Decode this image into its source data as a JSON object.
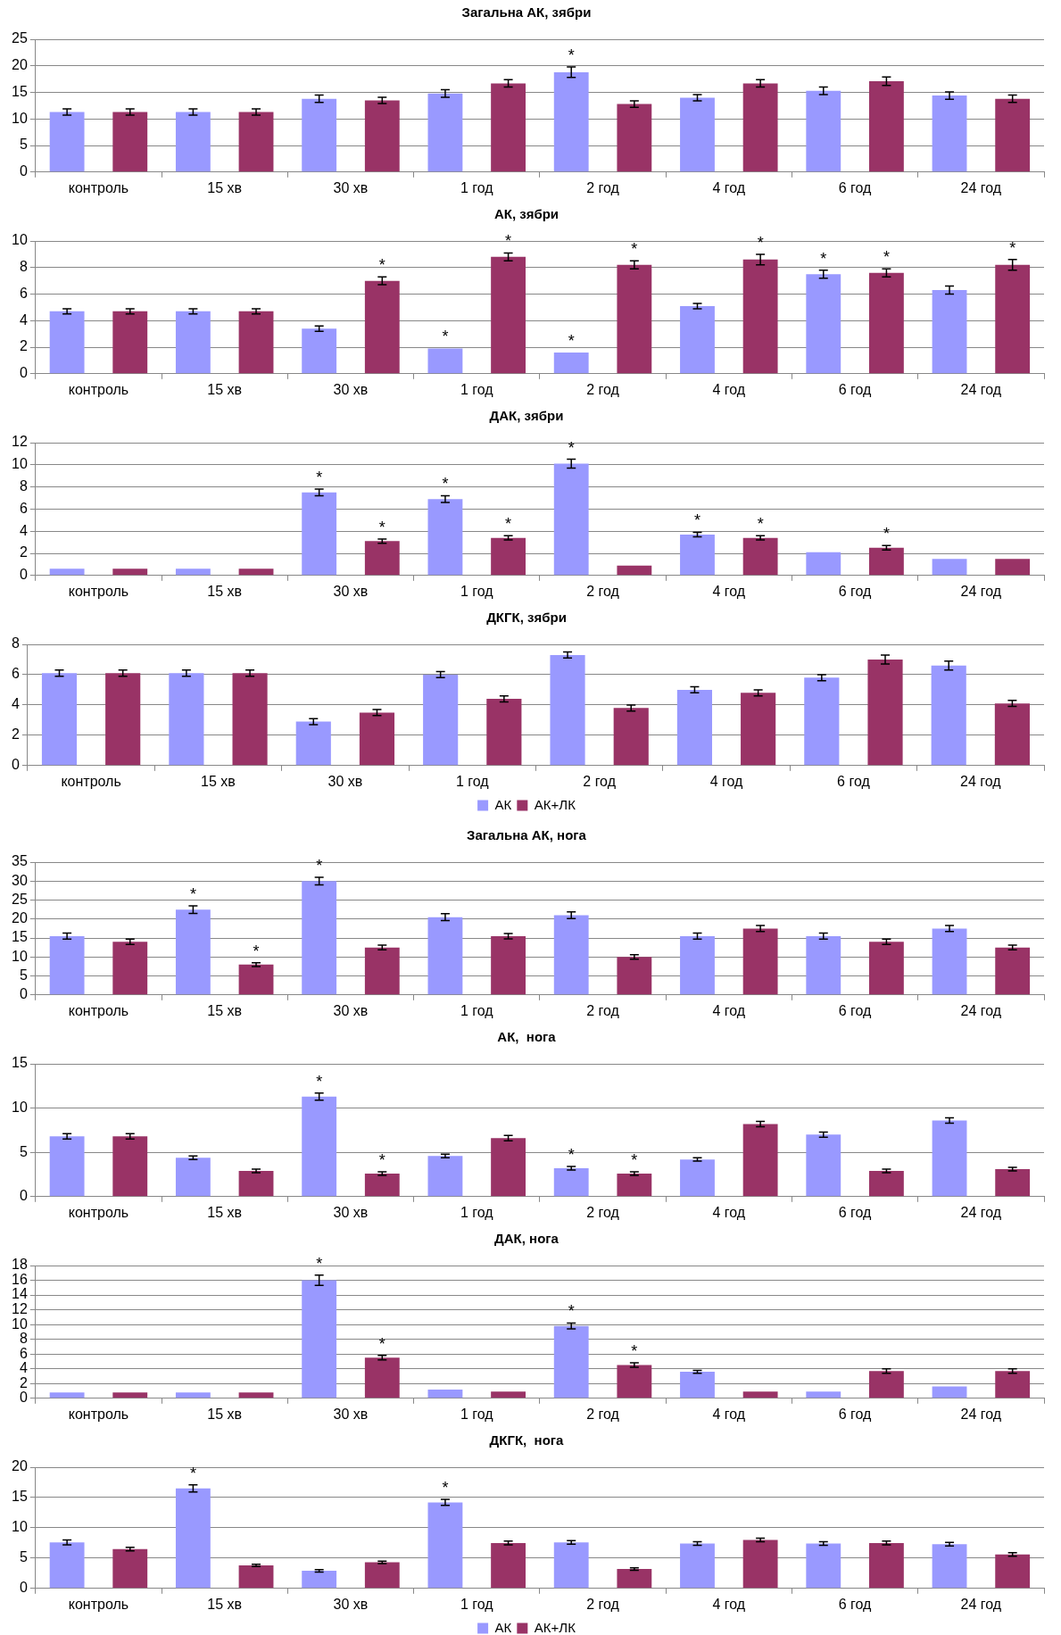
{
  "chart_data": [
    {
      "type": "bar",
      "title": "Загальна АК, зябри",
      "categories": [
        "контроль",
        "15 хв",
        "30 хв",
        "1 год",
        "2 год",
        "4 год",
        "6 год",
        "24 год"
      ],
      "ylim": [
        0,
        25
      ],
      "yticks": [
        0,
        5,
        10,
        15,
        20,
        25
      ],
      "grid": "y",
      "legend": false,
      "series": [
        {
          "color": "#9999ff",
          "values": [
            11.3,
            11.3,
            13.8,
            14.8,
            18.8,
            14.0,
            15.3,
            14.4
          ],
          "errors": [
            0.6,
            0.6,
            0.7,
            0.7,
            1.0,
            0.6,
            0.7,
            0.7
          ],
          "value_labels": [
            null,
            null,
            null,
            null,
            "*",
            null,
            null,
            null
          ]
        },
        {
          "color": "#993366",
          "values": [
            11.3,
            11.3,
            13.5,
            16.7,
            12.8,
            16.7,
            17.1,
            13.8
          ],
          "errors": [
            0.6,
            0.6,
            0.6,
            0.7,
            0.6,
            0.7,
            0.8,
            0.7
          ]
        }
      ]
    },
    {
      "type": "bar",
      "title": "АК, зябри",
      "categories": [
        "контроль",
        "15 хв",
        "30 хв",
        "1 год",
        "2 год",
        "4 год",
        "6 год",
        "24 год"
      ],
      "ylim": [
        0,
        10
      ],
      "yticks": [
        0,
        2,
        4,
        6,
        8,
        10
      ],
      "grid": "y",
      "legend": false,
      "series": [
        {
          "color": "#9999ff",
          "values": [
            4.7,
            4.7,
            3.4,
            1.9,
            1.6,
            5.1,
            7.5,
            6.3
          ],
          "errors": [
            0.2,
            0.2,
            0.2,
            null,
            null,
            0.2,
            0.3,
            0.3
          ],
          "value_labels": [
            null,
            null,
            null,
            "*",
            "*",
            null,
            "*",
            null
          ]
        },
        {
          "color": "#993366",
          "values": [
            4.7,
            4.7,
            7.0,
            8.8,
            8.2,
            8.6,
            7.6,
            8.2
          ],
          "errors": [
            0.2,
            0.2,
            0.3,
            0.3,
            0.3,
            0.4,
            0.3,
            0.4
          ],
          "value_labels": [
            null,
            null,
            "*",
            "*",
            "*",
            "*",
            "*",
            "*"
          ]
        }
      ]
    },
    {
      "type": "bar",
      "title": "ДАК, зябри",
      "categories": [
        "контроль",
        "15 хв",
        "30 хв",
        "1 год",
        "2 год",
        "4 год",
        "6 год",
        "24 год"
      ],
      "ylim": [
        0,
        12
      ],
      "yticks": [
        0,
        2,
        4,
        6,
        8,
        10,
        12
      ],
      "grid": "y",
      "legend": false,
      "series": [
        {
          "color": "#9999ff",
          "values": [
            0.6,
            0.6,
            7.5,
            6.9,
            10.1,
            3.7,
            2.1,
            1.5
          ],
          "errors": [
            null,
            null,
            0.3,
            0.3,
            0.4,
            0.2,
            null,
            null
          ],
          "value_labels": [
            null,
            null,
            "*",
            "*",
            "*",
            "*",
            null,
            null
          ]
        },
        {
          "color": "#993366",
          "values": [
            0.6,
            0.6,
            3.1,
            3.4,
            0.9,
            3.4,
            2.5,
            1.5
          ],
          "errors": [
            null,
            null,
            0.2,
            0.2,
            null,
            0.2,
            0.2,
            null
          ],
          "value_labels": [
            null,
            null,
            "*",
            "*",
            null,
            "*",
            "*",
            null
          ]
        }
      ]
    },
    {
      "type": "bar",
      "title": "ДКГК, зябри",
      "categories": [
        "контроль",
        "15 хв",
        "30 хв",
        "1 год",
        "2 год",
        "4 год",
        "6 год",
        "24 год"
      ],
      "ylim": [
        0,
        8
      ],
      "yticks": [
        0,
        2,
        4,
        6,
        8
      ],
      "grid": "y",
      "legend": "bottom",
      "series": [
        {
          "name": "АК",
          "color": "#9999ff",
          "values": [
            6.1,
            6.1,
            2.9,
            6.0,
            7.3,
            5.0,
            5.8,
            6.6
          ],
          "errors": [
            0.2,
            0.2,
            0.2,
            0.2,
            0.2,
            0.2,
            0.2,
            0.3
          ]
        },
        {
          "name": "АК+ЛК",
          "color": "#993366",
          "values": [
            6.1,
            6.1,
            3.5,
            4.4,
            3.8,
            4.8,
            7.0,
            4.1
          ],
          "errors": [
            0.2,
            0.2,
            0.2,
            0.2,
            0.2,
            0.2,
            0.3,
            0.2
          ]
        }
      ]
    },
    {
      "type": "bar",
      "title": "Загальна АК, нога",
      "categories": [
        "контроль",
        "15 хв",
        "30 хв",
        "1 год",
        "2 год",
        "4 год",
        "6 год",
        "24 год"
      ],
      "ylim": [
        0,
        35
      ],
      "yticks": [
        0,
        5,
        10,
        15,
        20,
        25,
        30,
        35
      ],
      "grid": "y",
      "legend": false,
      "series": [
        {
          "color": "#9999ff",
          "values": [
            15.5,
            22.5,
            30.0,
            20.5,
            21.0,
            15.5,
            15.5,
            17.5
          ],
          "errors": [
            0.8,
            1.0,
            1.0,
            0.9,
            0.9,
            0.8,
            0.8,
            0.8
          ],
          "value_labels": [
            null,
            "*",
            "*",
            null,
            null,
            null,
            null,
            null
          ]
        },
        {
          "color": "#993366",
          "values": [
            14.0,
            8.0,
            12.5,
            15.5,
            10.0,
            17.5,
            14.0,
            12.5
          ],
          "errors": [
            0.7,
            0.5,
            0.6,
            0.7,
            0.6,
            0.8,
            0.7,
            0.6
          ],
          "value_labels": [
            null,
            "*",
            null,
            null,
            null,
            null,
            null,
            null
          ]
        }
      ]
    },
    {
      "type": "bar",
      "title": "АК,  нога",
      "categories": [
        "контроль",
        "15 хв",
        "30 хв",
        "1 год",
        "2 год",
        "4 год",
        "6 год",
        "24 год"
      ],
      "ylim": [
        0,
        15
      ],
      "yticks": [
        0,
        5,
        10,
        15
      ],
      "grid": "y",
      "legend": false,
      "series": [
        {
          "color": "#9999ff",
          "values": [
            6.8,
            4.4,
            11.3,
            4.6,
            3.2,
            4.2,
            7.0,
            8.6
          ],
          "errors": [
            0.3,
            0.2,
            0.4,
            0.2,
            0.2,
            0.2,
            0.3,
            0.3
          ],
          "value_labels": [
            null,
            null,
            "*",
            null,
            "*",
            null,
            null,
            null
          ]
        },
        {
          "color": "#993366",
          "values": [
            6.8,
            2.9,
            2.6,
            6.6,
            2.6,
            8.2,
            2.9,
            3.1
          ],
          "errors": [
            0.3,
            0.2,
            0.2,
            0.3,
            0.2,
            0.3,
            0.2,
            0.2
          ],
          "value_labels": [
            null,
            null,
            "*",
            null,
            "*",
            null,
            null,
            null
          ]
        }
      ]
    },
    {
      "type": "bar",
      "title": "ДАК, нога",
      "categories": [
        "контроль",
        "15 хв",
        "30 хв",
        "1 год",
        "2 год",
        "4 год",
        "6 год",
        "24 год"
      ],
      "ylim": [
        0,
        18
      ],
      "yticks": [
        0,
        2,
        4,
        6,
        8,
        10,
        12,
        14,
        16,
        18
      ],
      "grid": "y",
      "legend": false,
      "series": [
        {
          "color": "#9999ff",
          "values": [
            0.8,
            0.8,
            16.0,
            1.2,
            9.8,
            3.6,
            0.9,
            1.6
          ],
          "errors": [
            null,
            null,
            0.7,
            null,
            0.4,
            0.2,
            null,
            null
          ],
          "value_labels": [
            null,
            null,
            "*",
            null,
            "*",
            null,
            null,
            null
          ]
        },
        {
          "color": "#993366",
          "values": [
            0.8,
            0.8,
            5.5,
            0.9,
            4.5,
            0.9,
            3.7,
            3.7
          ],
          "errors": [
            null,
            null,
            0.3,
            null,
            0.3,
            null,
            0.3,
            0.3
          ],
          "value_labels": [
            null,
            null,
            "*",
            null,
            "*",
            null,
            null,
            null
          ]
        }
      ]
    },
    {
      "type": "bar",
      "title": "ДКГК,  нога",
      "categories": [
        "контроль",
        "15 хв",
        "30 хв",
        "1 год",
        "2 год",
        "4 год",
        "6 год",
        "24 год"
      ],
      "ylim": [
        0,
        20
      ],
      "yticks": [
        0,
        5,
        10,
        15,
        20
      ],
      "grid": "y",
      "legend": "bottom",
      "series": [
        {
          "name": "АК",
          "color": "#9999ff",
          "values": [
            7.6,
            16.5,
            2.9,
            14.2,
            7.6,
            7.4,
            7.4,
            7.3
          ],
          "errors": [
            0.4,
            0.6,
            0.2,
            0.5,
            0.3,
            0.3,
            0.3,
            0.3
          ],
          "value_labels": [
            null,
            "*",
            null,
            "*",
            null,
            null,
            null,
            null
          ]
        },
        {
          "name": "АК+ЛК",
          "color": "#993366",
          "values": [
            6.5,
            3.8,
            4.3,
            7.5,
            3.2,
            8.0,
            7.5,
            5.6
          ],
          "errors": [
            0.3,
            0.2,
            0.2,
            0.3,
            0.2,
            0.3,
            0.3,
            0.3
          ]
        }
      ]
    }
  ]
}
